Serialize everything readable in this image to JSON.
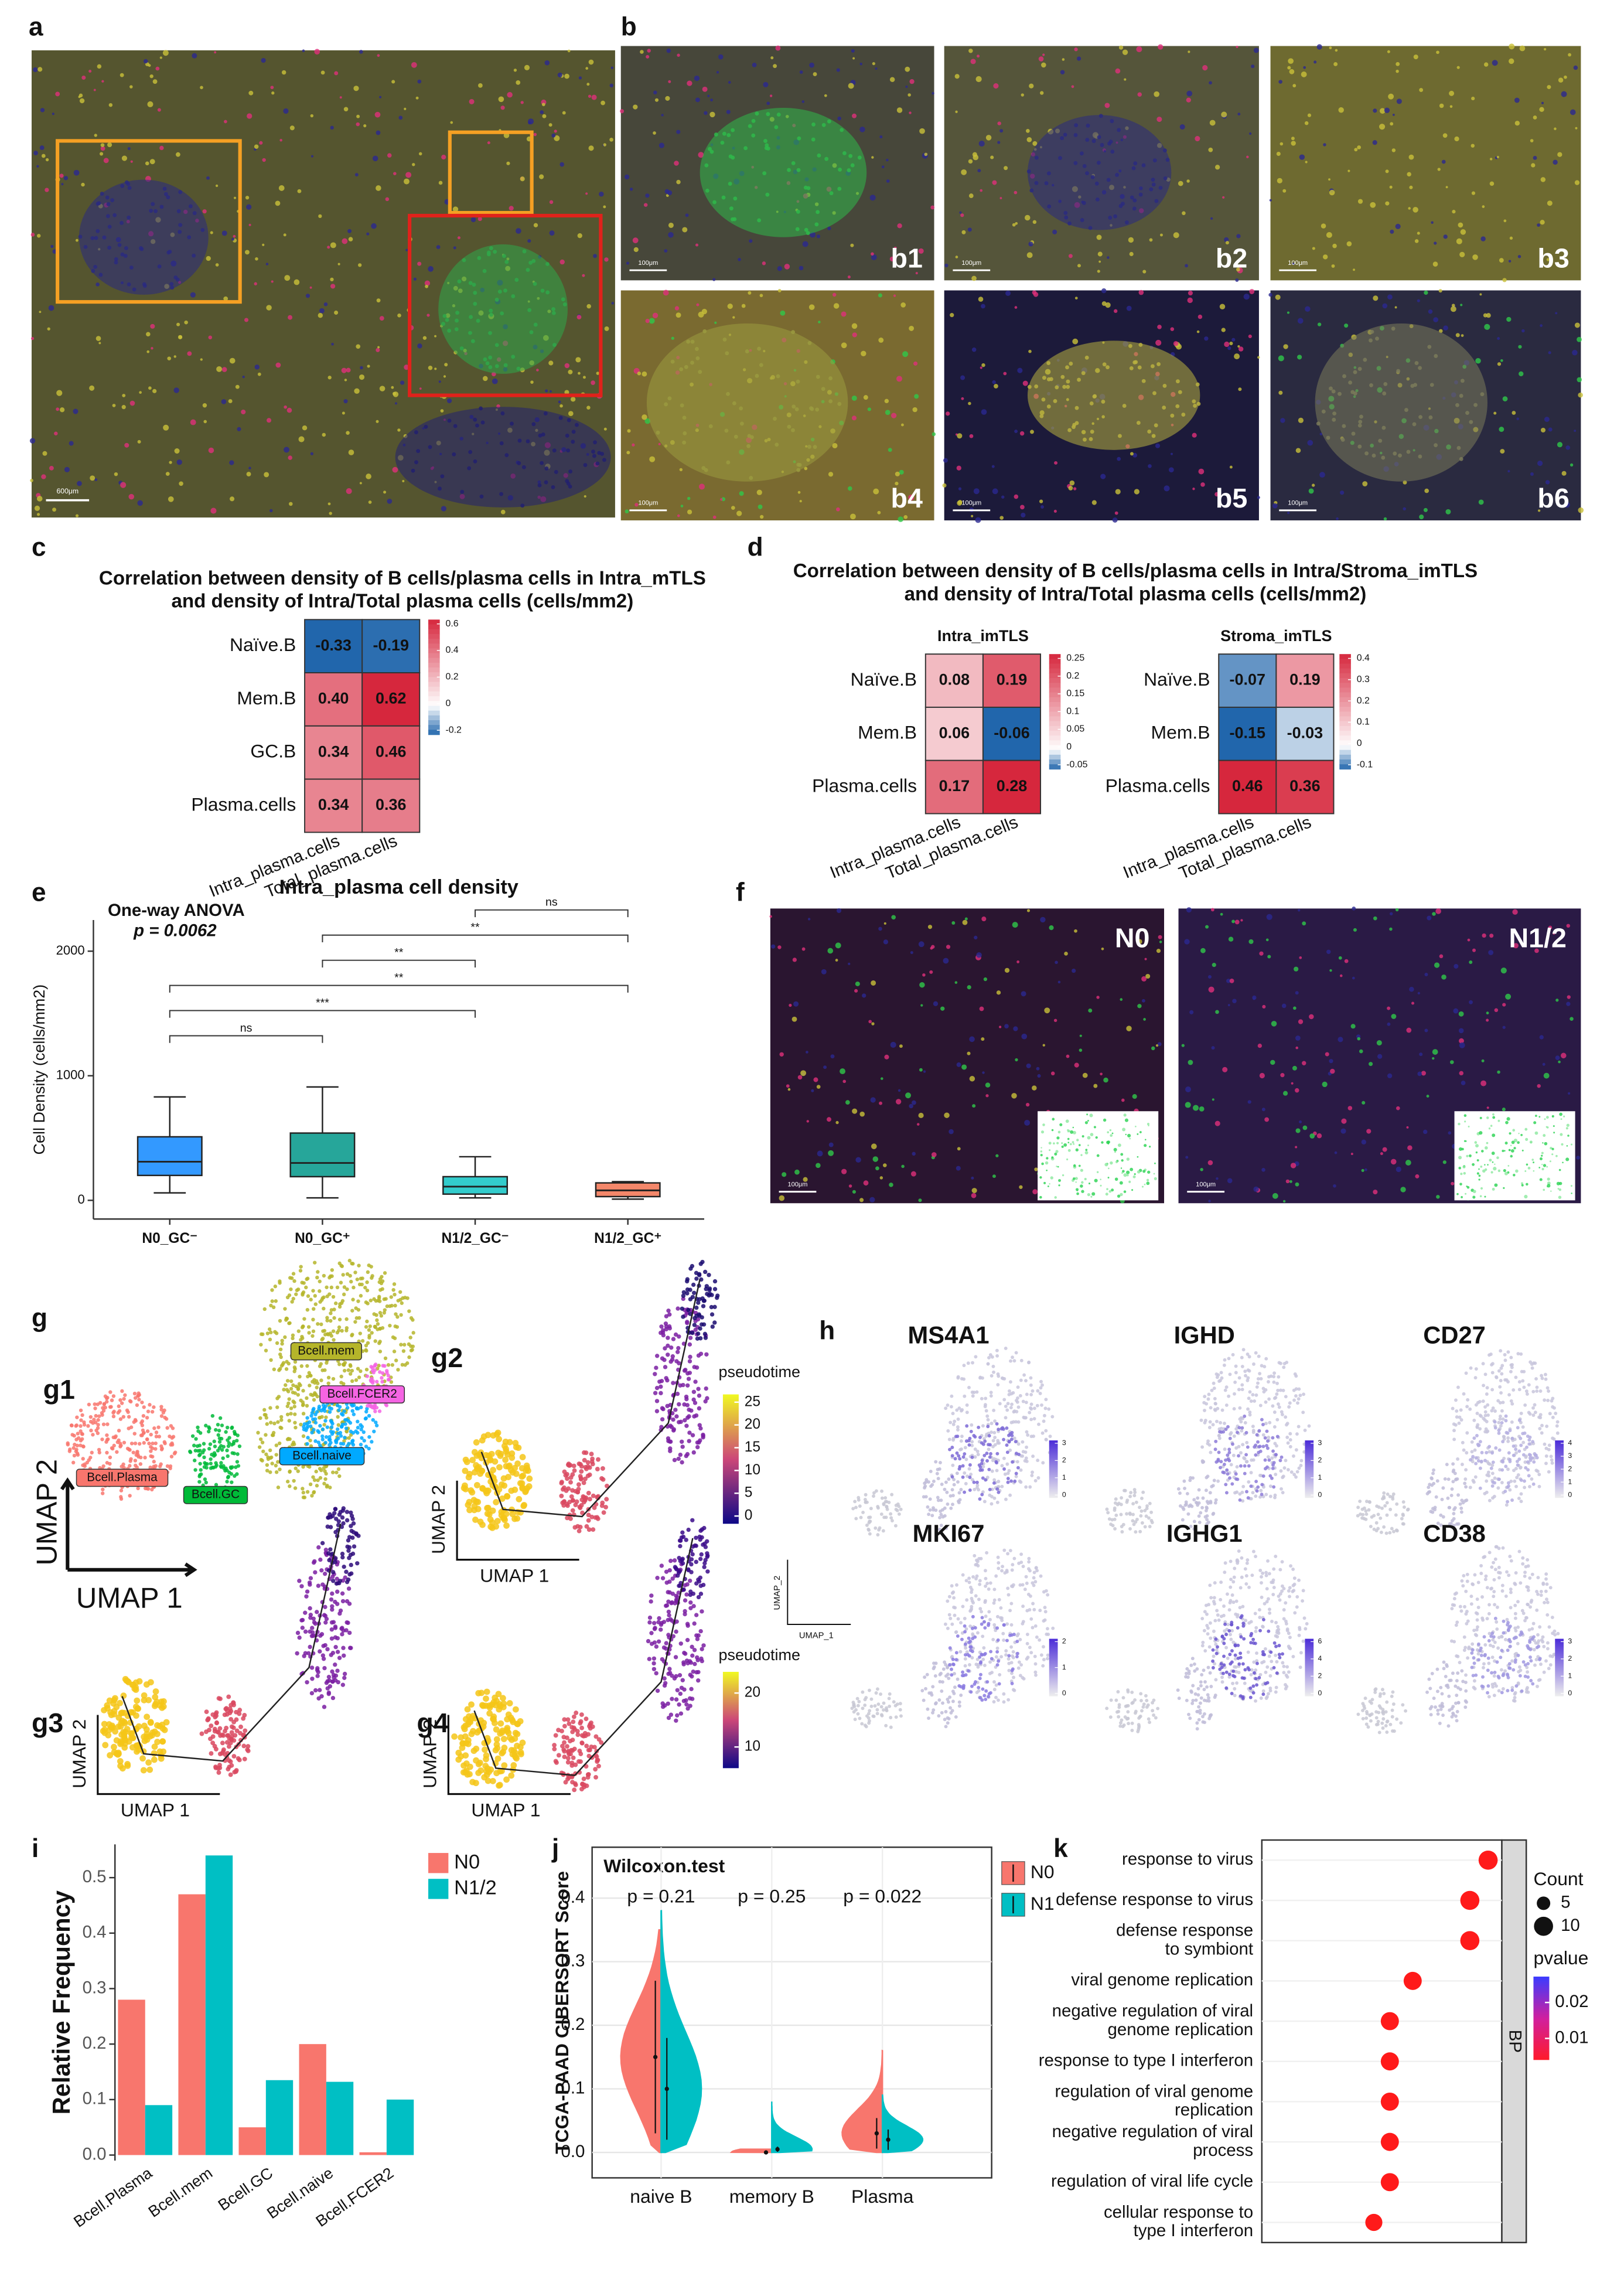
{
  "figure": {
    "panels": [
      "a",
      "b",
      "c",
      "d",
      "e",
      "f",
      "g",
      "h",
      "i",
      "j",
      "k"
    ],
    "a_scale_bar": "600μm",
    "b_images": [
      {
        "label": "b1",
        "scale_bar": "100μm"
      },
      {
        "label": "b2",
        "scale_bar": "100μm"
      },
      {
        "label": "b3",
        "scale_bar": "100μm"
      },
      {
        "label": "b4",
        "scale_bar": "100μm"
      },
      {
        "label": "b5",
        "scale_bar": "100μm"
      },
      {
        "label": "b6",
        "scale_bar": "100μm"
      }
    ],
    "f_images": [
      {
        "label": "N0",
        "scale_bar": "100μm"
      },
      {
        "label": "N1/2",
        "scale_bar": "100μm"
      }
    ],
    "g": {
      "subpanels": [
        "g1",
        "g2",
        "g3",
        "g4"
      ],
      "clusters": [
        "Bcell.Plasma",
        "Bcell.GC",
        "Bcell.naive",
        "Bcell.FCER2",
        "Bcell.mem"
      ],
      "x_label": "UMAP 1",
      "y_label": "UMAP 2",
      "legends": [
        {
          "title": "pseudotime",
          "ticks": [
            0,
            5,
            10,
            15,
            20,
            25
          ]
        },
        {
          "title": "pseudotime",
          "ticks": [
            10,
            20
          ]
        }
      ]
    },
    "h": {
      "genes": [
        {
          "name": "MS4A1",
          "ticks": [
            0,
            1,
            2,
            3
          ]
        },
        {
          "name": "IGHD",
          "ticks": [
            0,
            1,
            2,
            3
          ]
        },
        {
          "name": "CD27",
          "ticks": [
            0,
            1,
            2,
            3,
            4
          ]
        },
        {
          "name": "MKI67",
          "ticks": [
            0,
            1,
            2
          ]
        },
        {
          "name": "IGHG1",
          "ticks": [
            0,
            2,
            4,
            6
          ]
        },
        {
          "name": "CD38",
          "ticks": [
            0,
            1,
            2,
            3
          ]
        }
      ],
      "x_label": "UMAP_1",
      "y_label": "UMAP_2"
    }
  },
  "chart_data": [
    {
      "type": "heatmap",
      "title": [
        "Correlation between density of B cells/plasma cells in Intra_mTLS",
        "and density of Intra/Total plasma cells (cells/mm2)"
      ],
      "rows": [
        "Naïve.B",
        "Mem.B",
        "GC.B",
        "Plasma.cells"
      ],
      "columns": [
        "Intra_plasma.cells",
        "Total_plasma.cells"
      ],
      "values": [
        [
          -0.33,
          -0.19
        ],
        [
          0.4,
          0.62
        ],
        [
          0.34,
          0.46
        ],
        [
          0.34,
          0.36
        ]
      ],
      "value_labels": [
        [
          "-0.33",
          "-0.19"
        ],
        [
          "0.40",
          "0.62"
        ],
        [
          "0.34",
          "0.46"
        ],
        [
          "0.34",
          "0.36"
        ]
      ],
      "colorbar_ticks": [
        -0.2,
        0,
        0.2,
        0.4,
        0.6
      ],
      "colors": [
        "#2166ac",
        "#ffffff",
        "#d6273d"
      ]
    },
    {
      "type": "heatmap",
      "title": [
        "Correlation between density of B cells/plasma cells in Intra/Stroma_imTLS",
        "and density of Intra/Total plasma cells (cells/mm2)"
      ],
      "subtitle": "Intra_imTLS",
      "rows": [
        "Naïve.B",
        "Mem.B",
        "Plasma.cells"
      ],
      "columns": [
        "Intra_plasma.cells",
        "Total_plasma.cells"
      ],
      "values": [
        [
          0.08,
          0.19
        ],
        [
          0.06,
          -0.06
        ],
        [
          0.17,
          0.28
        ]
      ],
      "value_labels": [
        [
          "0.08",
          "0.19"
        ],
        [
          "0.06",
          "-0.06"
        ],
        [
          "0.17",
          "0.28"
        ]
      ],
      "colorbar_ticks": [
        -0.05,
        0,
        0.05,
        0.1,
        0.15,
        0.2,
        0.25
      ],
      "colors": [
        "#2166ac",
        "#ffffff",
        "#d6273d"
      ]
    },
    {
      "type": "heatmap",
      "subtitle": "Stroma_imTLS",
      "rows": [
        "Naïve.B",
        "Mem.B",
        "Plasma.cells"
      ],
      "columns": [
        "Intra_plasma.cells",
        "Total_plasma.cells"
      ],
      "values": [
        [
          -0.07,
          0.19
        ],
        [
          -0.15,
          -0.03
        ],
        [
          0.46,
          0.36
        ]
      ],
      "value_labels": [
        [
          "-0.07",
          "0.19"
        ],
        [
          "-0.15",
          "-0.03"
        ],
        [
          "0.46",
          "0.36"
        ]
      ],
      "colorbar_ticks": [
        -0.1,
        0,
        0.1,
        0.2,
        0.3,
        0.4
      ],
      "colors": [
        "#2166ac",
        "#ffffff",
        "#d6273d"
      ]
    },
    {
      "type": "box",
      "title": "Intra_plasma cell density",
      "y_label": "Cell Density (cells/mm2)",
      "annotations": [
        "One-way ANOVA",
        "p = 0.0062"
      ],
      "categories": [
        "N0_GC⁻",
        "N0_GC⁺",
        "N1/2_GC⁻",
        "N1/2_GC⁺"
      ],
      "boxes": [
        {
          "min": 60,
          "q1": 200,
          "median": 310,
          "q3": 510,
          "max": 830
        },
        {
          "min": 20,
          "q1": 190,
          "median": 300,
          "q3": 540,
          "max": 910
        },
        {
          "min": 20,
          "q1": 50,
          "median": 110,
          "q3": 190,
          "max": 350
        },
        {
          "min": 10,
          "q1": 30,
          "median": 80,
          "q3": 140,
          "max": 150
        }
      ],
      "colors": [
        "#3399ff",
        "#26a69a",
        "#33cccc",
        "#f4876a"
      ],
      "comparisons": [
        {
          "groups": [
            "N1/2_GC⁻",
            "N1/2_GC⁺"
          ],
          "label": "ns"
        },
        {
          "groups": [
            "N0_GC⁺",
            "N1/2_GC⁺"
          ],
          "label": "**"
        },
        {
          "groups": [
            "N0_GC⁺",
            "N1/2_GC⁻"
          ],
          "label": "**"
        },
        {
          "groups": [
            "N0_GC⁻",
            "N1/2_GC⁺"
          ],
          "label": "**"
        },
        {
          "groups": [
            "N0_GC⁻",
            "N1/2_GC⁻"
          ],
          "label": "***"
        },
        {
          "groups": [
            "N0_GC⁻",
            "N0_GC⁺"
          ],
          "label": "ns"
        }
      ],
      "ylim": [
        -150,
        2250
      ],
      "yticks": [
        0,
        1000,
        2000
      ]
    },
    {
      "type": "bar",
      "y_label": "Relative Frequency",
      "categories": [
        "Bcell.Plasma",
        "Bcell.mem",
        "Bcell.GC",
        "Bcell.naive",
        "Bcell.FCER2"
      ],
      "series": [
        {
          "name": "N0",
          "color": "#f8766d",
          "values": [
            0.28,
            0.47,
            0.05,
            0.2,
            0.005
          ]
        },
        {
          "name": "N1/2",
          "color": "#00bfc4",
          "values": [
            0.09,
            0.54,
            0.135,
            0.132,
            0.1
          ]
        }
      ],
      "ylim": [
        -0.01,
        0.56
      ],
      "yticks": [
        {
          "value": 0,
          "label": "0.0"
        },
        0.1,
        0.2,
        0.3,
        0.4,
        0.5
      ]
    },
    {
      "type": "violin",
      "title": "Wilcoxon.test",
      "y_label": "TCGA-PAAD CIBERSORT Score",
      "annotations": [
        "p = 0.21",
        "p = 0.25",
        "p = 0.022"
      ],
      "categories": [
        "naive B",
        "memory B",
        "Plasma"
      ],
      "series": [
        {
          "name": "N0",
          "color": "#f8766d",
          "values": [
            0.15,
            0.0,
            0.03
          ],
          "max": [
            0.35,
            0.005,
            0.16
          ]
        },
        {
          "name": "N1",
          "color": "#00bfc4",
          "values": [
            0.1,
            0.005,
            0.02
          ],
          "max": [
            0.38,
            0.08,
            0.09
          ]
        }
      ],
      "ylim": [
        -0.04,
        0.48
      ],
      "yticks": [
        {
          "value": 0,
          "label": "0.0"
        },
        0.1,
        0.2,
        0.3,
        0.4
      ]
    },
    {
      "type": "dot",
      "strip": "BP",
      "categories": [
        [
          "response to virus"
        ],
        [
          "defense response to virus"
        ],
        [
          "defense response",
          "to symbiont"
        ],
        [
          "viral genome replication"
        ],
        [
          "negative regulation of viral",
          "genome replication"
        ],
        [
          "response to type I interferon"
        ],
        [
          "regulation of viral genome",
          "replication"
        ],
        [
          "negative regulation of viral",
          "process"
        ],
        [
          "regulation of viral life cycle"
        ],
        [
          "cellular response to",
          "type I interferon"
        ]
      ],
      "values": [
        0.159,
        0.151,
        0.151,
        0.126,
        0.116,
        0.116,
        0.116,
        0.116,
        0.116,
        0.109
      ],
      "count": [
        10,
        10,
        10,
        9,
        9,
        9,
        9,
        9,
        9,
        8
      ],
      "xlim": [
        0.06,
        0.165
      ],
      "color": "#ff1a1a",
      "count_legend": {
        "title": "Count",
        "ticks": [
          5,
          10
        ]
      },
      "pvalue_legend": {
        "title": "pvalue",
        "ticks": [
          0.02,
          0.01
        ]
      }
    }
  ]
}
